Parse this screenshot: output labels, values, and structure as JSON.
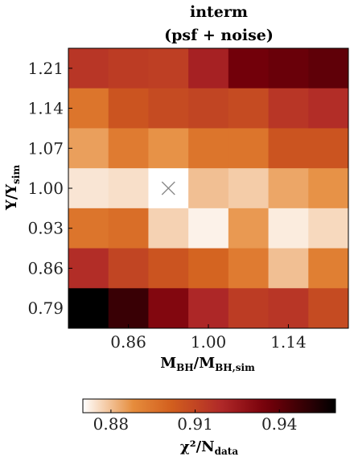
{
  "chart_data": {
    "type": "heatmap",
    "title": "interm",
    "subtitle": "(psf + noise)",
    "xlabel": "M_BH/M_BH,sim",
    "xlabel_main": "M",
    "xlabel_sub": "BH",
    "xlabel_sep": "/M",
    "xlabel_sub2": "BH,sim",
    "ylabel_main": "Υ/Υ",
    "ylabel_sub": "sim",
    "x": [
      0.79,
      0.86,
      0.93,
      1.0,
      1.07,
      1.14,
      1.21
    ],
    "y": [
      1.21,
      1.14,
      1.07,
      1.0,
      0.93,
      0.86,
      0.79
    ],
    "x_tick_labels": [
      "0.86",
      "1.00",
      "1.14"
    ],
    "y_tick_labels": [
      "1.21",
      "1.14",
      "1.07",
      "1.00",
      "0.93",
      "0.86",
      "0.79"
    ],
    "values": [
      [
        0.915,
        0.913,
        0.912,
        0.922,
        0.936,
        0.938,
        0.94
      ],
      [
        0.895,
        0.905,
        0.908,
        0.91,
        0.908,
        0.915,
        0.918
      ],
      [
        0.885,
        0.893,
        0.887,
        0.895,
        0.895,
        0.905,
        0.905
      ],
      [
        0.874,
        0.875,
        0.87,
        0.88,
        0.878,
        0.884,
        0.887
      ],
      [
        0.895,
        0.897,
        0.877,
        0.872,
        0.886,
        0.873,
        0.876
      ],
      [
        0.918,
        0.91,
        0.905,
        0.9,
        0.893,
        0.88,
        0.892
      ],
      [
        0.96,
        0.948,
        0.932,
        0.92,
        0.913,
        0.915,
        0.908
      ]
    ],
    "min_marker": {
      "x": 0.93,
      "y": 1.0
    },
    "colorbar": {
      "label_main": "χ²/N",
      "label_sub": "data",
      "range": [
        0.87,
        0.96
      ],
      "ticks": [
        0.88,
        0.91,
        0.94
      ],
      "tick_labels": [
        "0.88",
        "0.91",
        "0.94"
      ],
      "colormap": "gist_heat_r"
    }
  }
}
